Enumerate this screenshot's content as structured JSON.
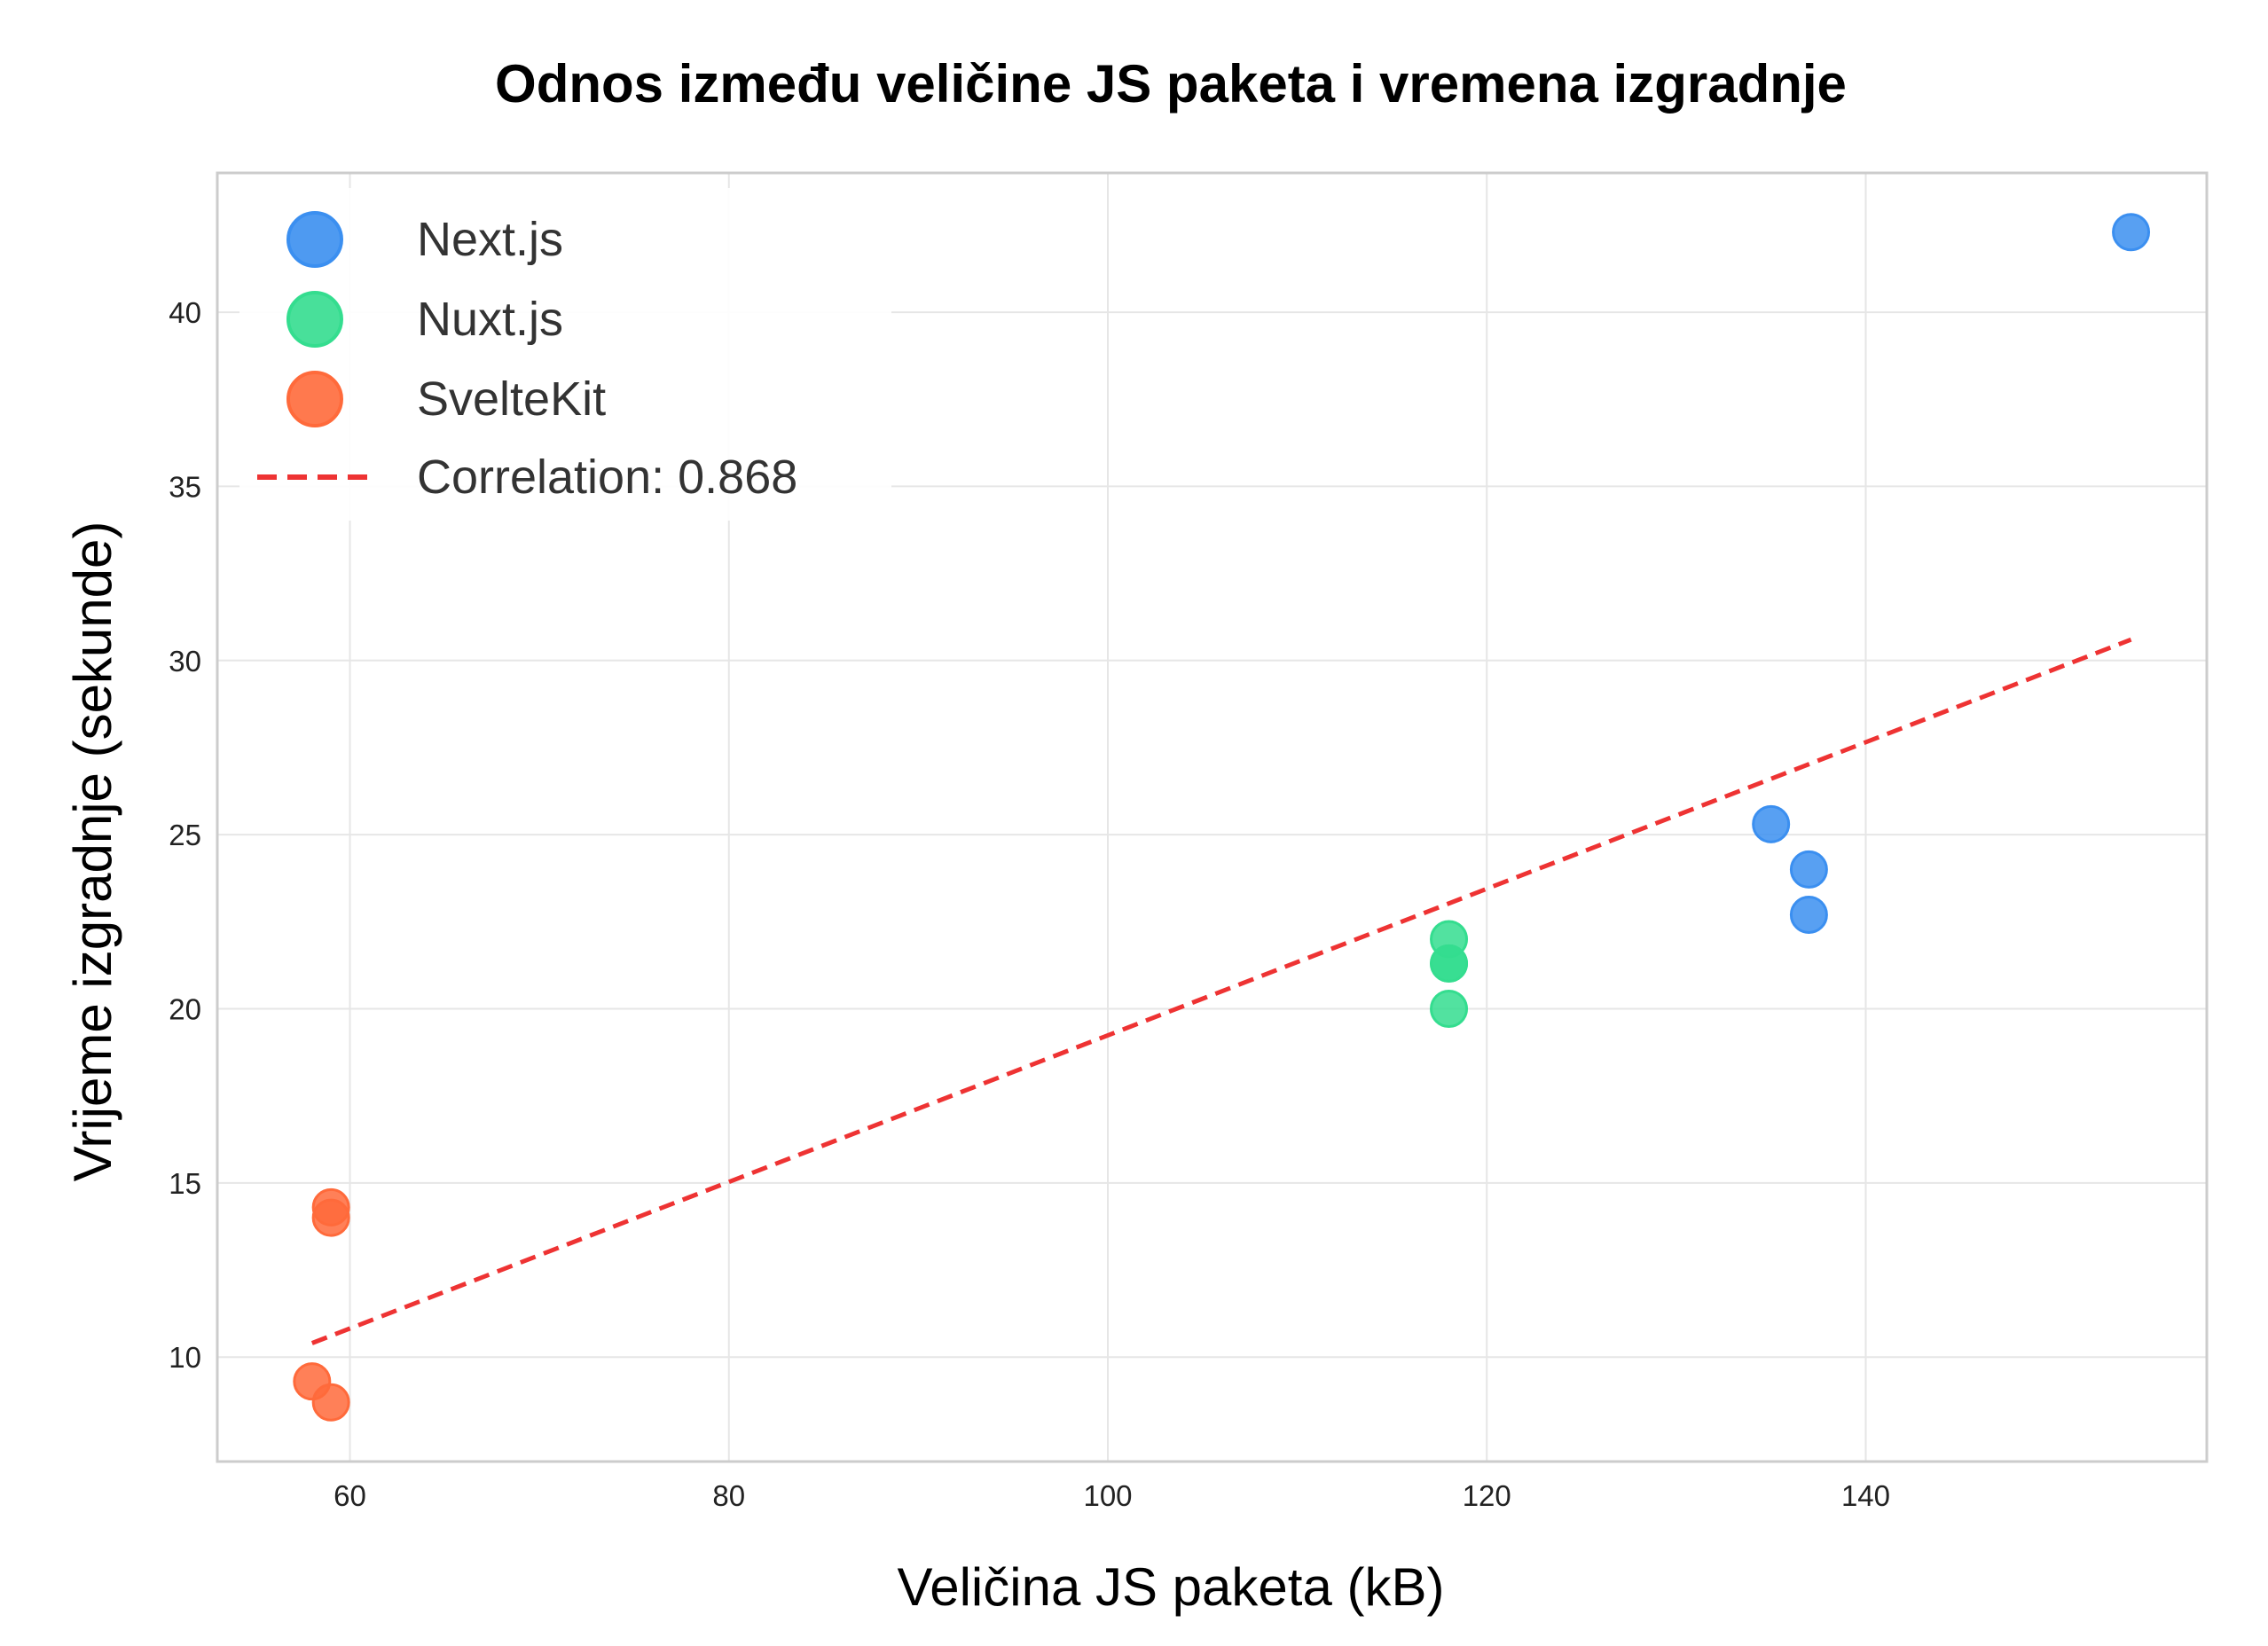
{
  "chart_data": {
    "type": "scatter",
    "title": "Odnos između veličine JS paketa i vremena izgradnje",
    "xlabel": "Veličina JS paketa (kB)",
    "ylabel": "Vrijeme izgradnje (sekunde)",
    "xlim": [
      53,
      158
    ],
    "ylim": [
      7,
      44
    ],
    "x_ticks": [
      60,
      80,
      100,
      120,
      140
    ],
    "y_ticks": [
      10,
      15,
      20,
      25,
      30,
      35,
      40
    ],
    "grid": true,
    "legend_position": "top-left",
    "series": [
      {
        "name": "Next.js",
        "color": "#3b8ff0",
        "points": [
          {
            "x": 135,
            "y": 25.3
          },
          {
            "x": 137,
            "y": 24.0
          },
          {
            "x": 137,
            "y": 22.7
          },
          {
            "x": 154,
            "y": 42.3
          }
        ]
      },
      {
        "name": "Nuxt.js",
        "color": "#34dd8f",
        "points": [
          {
            "x": 118,
            "y": 22.0
          },
          {
            "x": 118,
            "y": 21.3
          },
          {
            "x": 118,
            "y": 21.3
          },
          {
            "x": 118,
            "y": 20.0
          }
        ]
      },
      {
        "name": "SvelteKit",
        "color": "#ff6a3b",
        "points": [
          {
            "x": 59,
            "y": 14.3
          },
          {
            "x": 59,
            "y": 14.0
          },
          {
            "x": 58,
            "y": 9.3
          },
          {
            "x": 59,
            "y": 8.7
          }
        ]
      }
    ],
    "trendline": {
      "label": "Correlation: 0.868",
      "color": "#ee3333",
      "x": [
        58,
        154
      ],
      "y": [
        10.4,
        30.6
      ]
    }
  }
}
